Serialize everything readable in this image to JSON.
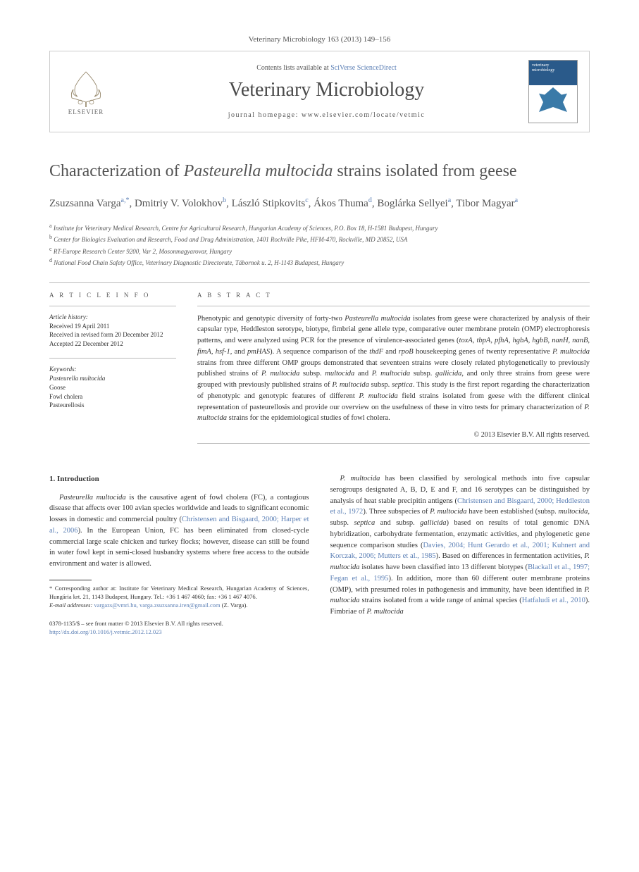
{
  "journal_header": "Veterinary Microbiology 163 (2013) 149–156",
  "masthead": {
    "contents_prefix": "Contents lists available at ",
    "contents_link": "SciVerse ScienceDirect",
    "journal_name": "Veterinary Microbiology",
    "homepage_prefix": "journal homepage: ",
    "homepage_url": "www.elsevier.com/locate/vetmic",
    "elsevier_label": "ELSEVIER",
    "cover_title_top": "veterinary",
    "cover_title_bottom": "microbiology"
  },
  "title_html": "Characterization of <em>Pasteurella multocida</em> strains isolated from geese",
  "authors_html": "Zsuzsanna Varga<sup>a,*</sup>, Dmitriy V. Volokhov<sup>b</sup>, László Stipkovits<sup>c</sup>, Ákos Thuma<sup>d</sup>, Boglárka Sellyei<sup>a</sup>, Tibor Magyar<sup>a</sup>",
  "affiliations": [
    {
      "sup": "a",
      "text": "Institute for Veterinary Medical Research, Centre for Agricultural Research, Hungarian Academy of Sciences, P.O. Box 18, H-1581 Budapest, Hungary"
    },
    {
      "sup": "b",
      "text": "Center for Biologics Evaluation and Research, Food and Drug Administration, 1401 Rockville Pike, HFM-470, Rockville, MD 20852, USA"
    },
    {
      "sup": "c",
      "text": "RT-Europe Research Center 9200, Var 2, Mosonmagyarovar, Hungary"
    },
    {
      "sup": "d",
      "text": "National Food Chain Safety Office, Veterinary Diagnostic Directorate, Tábornok u. 2, H-1143 Budapest, Hungary"
    }
  ],
  "article_info": {
    "label": "A R T I C L E   I N F O",
    "history_heading": "Article history:",
    "history_lines": [
      "Received 19 April 2011",
      "Received in revised form 20 December 2012",
      "Accepted 22 December 2012"
    ],
    "keywords_heading": "Keywords:",
    "keywords": [
      "Pasteurella multocida",
      "Goose",
      "Fowl cholera",
      "Pasteurellosis"
    ]
  },
  "abstract": {
    "label": "A B S T R A C T",
    "text_html": "Phenotypic and genotypic diversity of forty-two <em>Pasteurella multocida</em> isolates from geese were characterized by analysis of their capsular type, Heddleston serotype, biotype, fimbrial gene allele type, comparative outer membrane protein (OMP) electrophoresis patterns, and were analyzed using PCR for the presence of virulence-associated genes (<em>toxA</em>, <em>tbpA</em>, <em>pfhA</em>, <em>hgbA</em>, <em>hgbB</em>, <em>nanH</em>, <em>nanB</em>, <em>fimA</em>, <em>hsf-1</em>, and <em>pmHAS</em>). A sequence comparison of the <em>thdF</em> and <em>rpoB</em> housekeeping genes of twenty representative <em>P. multocida</em> strains from three different OMP groups demonstrated that seventeen strains were closely related phylogenetically to previously published strains of <em>P. multocida</em> subsp. <em>multocida</em> and <em>P. multocida</em> subsp. <em>gallicida</em>, and only three strains from geese were grouped with previously published strains of <em>P. multocida</em> subsp. <em>septica</em>. This study is the first report regarding the characterization of phenotypic and genotypic features of different <em>P. multocida</em> field strains isolated from geese with the different clinical representation of pasteurellosis and provide our overview on the usefulness of these in vitro tests for primary characterization of <em>P. multocida</em> strains for the epidemiological studies of fowl cholera.",
    "copyright": "© 2013 Elsevier B.V. All rights reserved."
  },
  "body": {
    "heading": "1. Introduction",
    "col1_p1_html": "<em>Pasteurella multocida</em> is the causative agent of fowl cholera (FC), a contagious disease that affects over 100 avian species worldwide and leads to significant economic losses in domestic and commercial poultry (<span class=\"cite\">Christensen and Bisgaard, 2000; Harper et al., 2006</span>). In the European Union, FC has been eliminated from closed-cycle commercial large scale chicken and turkey flocks; however, disease can still be found in water fowl kept in semi-closed husbandry systems where free access to the outside environment and water is allowed.",
    "col2_p1_html": "<em>P. multocida</em> has been classified by serological methods into five capsular serogroups designated A, B, D, E and F, and 16 serotypes can be distinguished by analysis of heat stable precipitin antigens (<span class=\"cite\">Christensen and Bisgaard, 2000; Heddleston et al., 1972</span>). Three subspecies of <em>P. multocida</em> have been established (subsp. <em>multocida</em>, subsp. <em>septica</em> and subsp. <em>gallicida</em>) based on results of total genomic DNA hybridization, carbohydrate fermentation, enzymatic activities, and phylogenetic gene sequence comparison studies (<span class=\"cite\">Davies, 2004; Hunt Gerardo et al., 2001; Kuhnert and Korczak, 2006; Mutters et al., 1985</span>). Based on differences in fermentation activities, <em>P. multocida</em> isolates have been classified into 13 different biotypes (<span class=\"cite\">Blackall et al., 1997; Fegan et al., 1995</span>). In addition, more than 60 different outer membrane proteins (OMP), with presumed roles in pathogenesis and immunity, have been identified in <em>P. multocida</em> strains isolated from a wide range of animal species (<span class=\"cite\">Hatfaludi et al., 2010</span>). Fimbriae of <em>P. multocida</em>"
  },
  "corresponding": {
    "note_html": "* Corresponding author at: Institute for Veterinary Medical Research, Hungarian Academy of Sciences, Hungária krt. 21, 1143 Budapest, Hungary. Tel.: +36 1 467 4060; fax: +36 1 467 4076.",
    "email_label": "E-mail addresses:",
    "emails": "vargazs@vmri.hu, varga.zsuzsanna.iren@gmail.com",
    "email_person": "(Z. Varga)."
  },
  "footer": {
    "issn_line": "0378-1135/$ – see front matter © 2013 Elsevier B.V. All rights reserved.",
    "doi": "http://dx.doi.org/10.1016/j.vetmic.2012.12.023"
  },
  "colors": {
    "link": "#5b7fb5",
    "text": "#333333",
    "heading": "#535353",
    "rule": "#bbbbbb"
  }
}
